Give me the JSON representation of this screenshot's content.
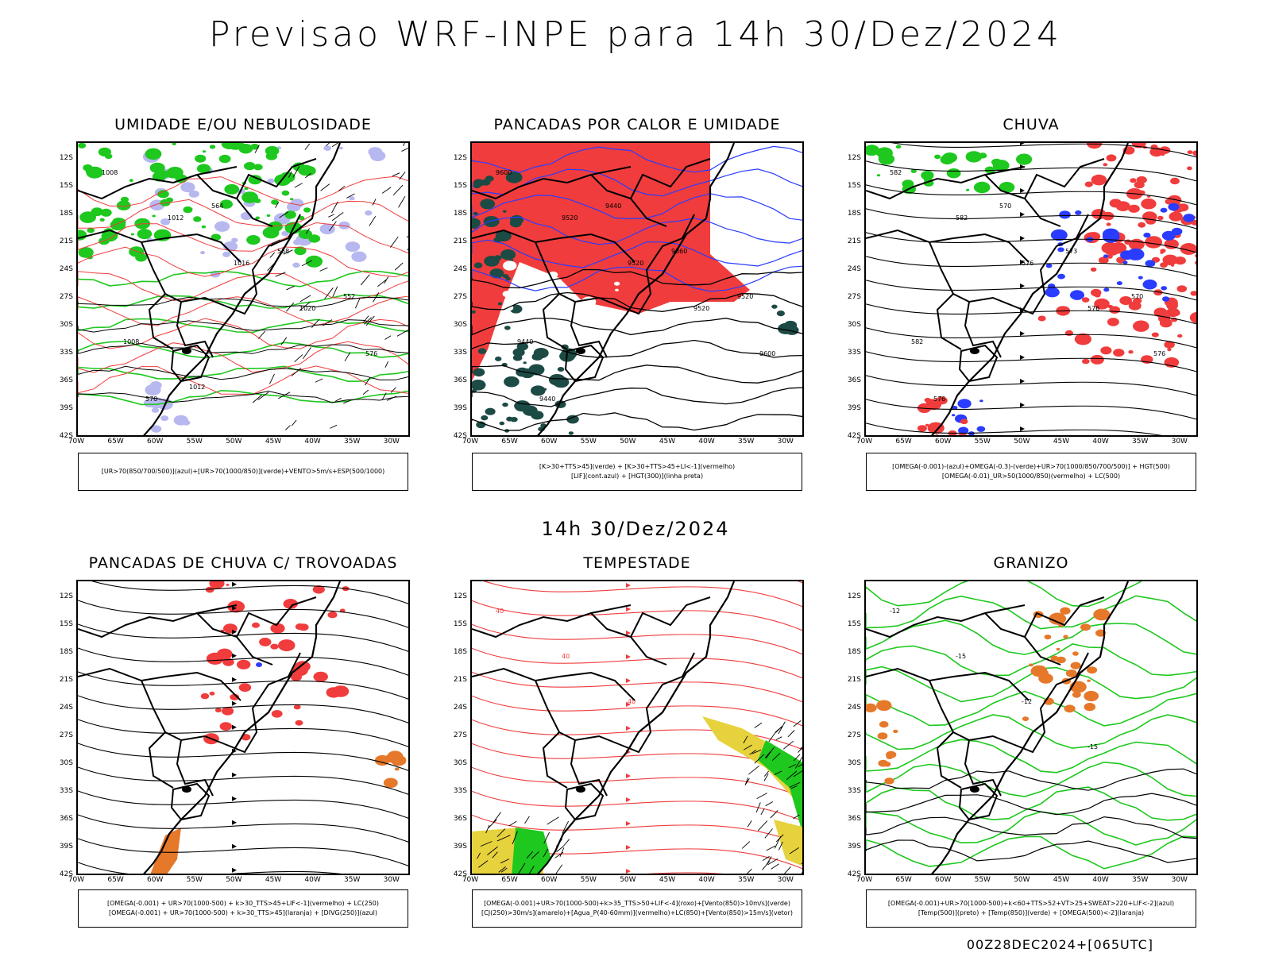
{
  "title": "Previsao WRF-INPE  para 14h 30/Dez/2024",
  "mid_title": "14h 30/Dez/2024",
  "footer": "00Z28DEC2024+[065UTC]",
  "lat_labels": [
    "12S",
    "15S",
    "18S",
    "21S",
    "24S",
    "27S",
    "30S",
    "33S",
    "36S",
    "39S",
    "42S"
  ],
  "lon_labels": [
    "70W",
    "65W",
    "60W",
    "55W",
    "50W",
    "45W",
    "40W",
    "35W",
    "30W"
  ],
  "colors": {
    "red": "#f03c3c",
    "green": "#1ec81e",
    "blue": "#2a3cff",
    "lavender": "#b8b8f0",
    "dark": "#1c4a44",
    "yellow": "#e6d23c",
    "orange": "#e6782a"
  },
  "panels": [
    {
      "title": "UMIDADE E/OU NEBULOSIDADE",
      "legend": [
        "[UR>70(850/700/500)](azul)+[UR>70(1000/850)](verde)+VENTO>5m/s+ESP(500/1000)"
      ],
      "contour_labels": [
        "1008",
        "1012",
        "1016",
        "1020",
        "576",
        "570",
        "564",
        "558",
        "552",
        "1008",
        "1012"
      ]
    },
    {
      "title": "PANCADAS POR CALOR E UMIDADE",
      "legend": [
        "[K>30+TTS>45](verde) + [K>30+TTS>45+LI<-1](vermelho)",
        "[LIF](cont.azul) + [HGT(300)](linha preta)"
      ],
      "contour_labels": [
        "9600",
        "9520",
        "9520",
        "9520",
        "9600",
        "9440",
        "9440",
        "9360",
        "9520",
        "9440"
      ]
    },
    {
      "title": "CHUVA",
      "legend": [
        "[OMEGA(-0.001)-(azul)+OMEGA(-0.3)-(verde)+UR>70(1000/850/700/500)] + HGT(500)",
        "[OMEGA(-0.01)_UR>50(1000/850)(vermelho) + LC(500)"
      ],
      "contour_labels": [
        "582",
        "582",
        "576",
        "576",
        "576",
        "576",
        "570",
        "573",
        "570",
        "582"
      ]
    },
    {
      "title": "PANCADAS DE CHUVA C/ TROVOADAS",
      "legend": [
        "[OMEGA(-0.001) + UR>70(1000-500) + k>30_TTS>45+LIF<-1](vermelho) + LC(250)",
        "[OMEGA(-0.001) + UR>70(1000-500) + k>30_TTS>45](laranja) + [DIVG(250)](azul)"
      ],
      "contour_labels": []
    },
    {
      "title": "TEMPESTADE",
      "legend": [
        "[OMEGA(-0.001)+UR>70(1000-500)+k>35_TTS>50+LIF<-4](roxo)+[Vento(850)>10m/s](verde)",
        "[CJ(250)>30m/s](amarelo)+[Agua_P(40-60mm)](vermelho)+LC(850)+[Vento(850)>15m/s](vetor)"
      ],
      "contour_labels": [
        "40",
        "40",
        "40"
      ]
    },
    {
      "title": "GRANIZO",
      "legend": [
        "[OMEGA(-0.001)+UR>70(1000-500)+k<60+TTS>52+VT>25+SWEAT>220+LIF<-2](azul)",
        "[Temp(500)](preto) + [Temp(850)](verde) + [OMEGA(500)<-2](laranja)"
      ],
      "contour_labels": [
        "-12",
        "-15",
        "-12",
        "-15"
      ]
    }
  ]
}
